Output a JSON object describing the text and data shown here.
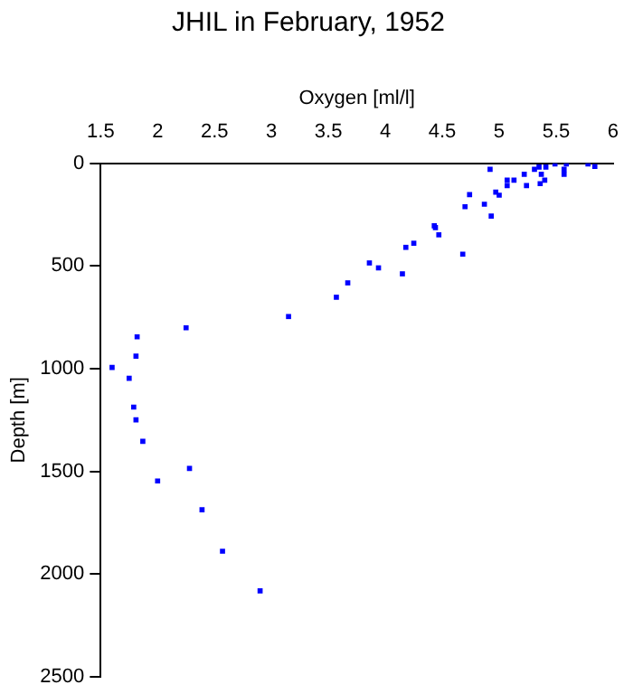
{
  "chart_data": {
    "type": "scatter",
    "title": "JHIL in February, 1952",
    "xlabel": "Oxygen [ml/l]",
    "ylabel": "Depth [m]",
    "x": [
      4.92,
      5.78,
      5.84,
      5.49,
      5.59,
      5.57,
      5.57,
      5.41,
      5.35,
      5.31,
      5.37,
      5.4,
      5.36,
      5.22,
      5.24,
      5.13,
      5.07,
      5.07,
      4.97,
      5.0,
      4.74,
      4.7,
      4.87,
      4.93,
      4.43,
      4.44,
      4.47,
      4.25,
      4.18,
      4.68,
      3.86,
      3.94,
      4.15,
      3.67,
      3.57,
      3.15,
      2.25,
      1.82,
      1.81,
      1.6,
      1.75,
      1.79,
      1.81,
      1.87,
      2.28,
      2.0,
      2.39,
      2.57,
      2.9
    ],
    "values": [
      29,
      3,
      15,
      3,
      3,
      29,
      53,
      18,
      18,
      29,
      53,
      82,
      99,
      53,
      108,
      82,
      82,
      108,
      140,
      155,
      152,
      211,
      199,
      257,
      304,
      313,
      348,
      389,
      409,
      442,
      485,
      509,
      538,
      582,
      652,
      746,
      801,
      845,
      939,
      994,
      1047,
      1187,
      1249,
      1354,
      1486,
      1547,
      1687,
      1889,
      2082
    ],
    "color": "#0000ff",
    "marker": "square",
    "grid": false,
    "legend": false,
    "xlim": [
      1.5,
      6
    ],
    "xticks": [
      1.5,
      2,
      2.5,
      3,
      3.5,
      4,
      4.5,
      5,
      5.5,
      6
    ],
    "ylim": [
      2500,
      0
    ],
    "yticks": [
      0,
      500,
      1000,
      1500,
      2000,
      2500
    ]
  }
}
